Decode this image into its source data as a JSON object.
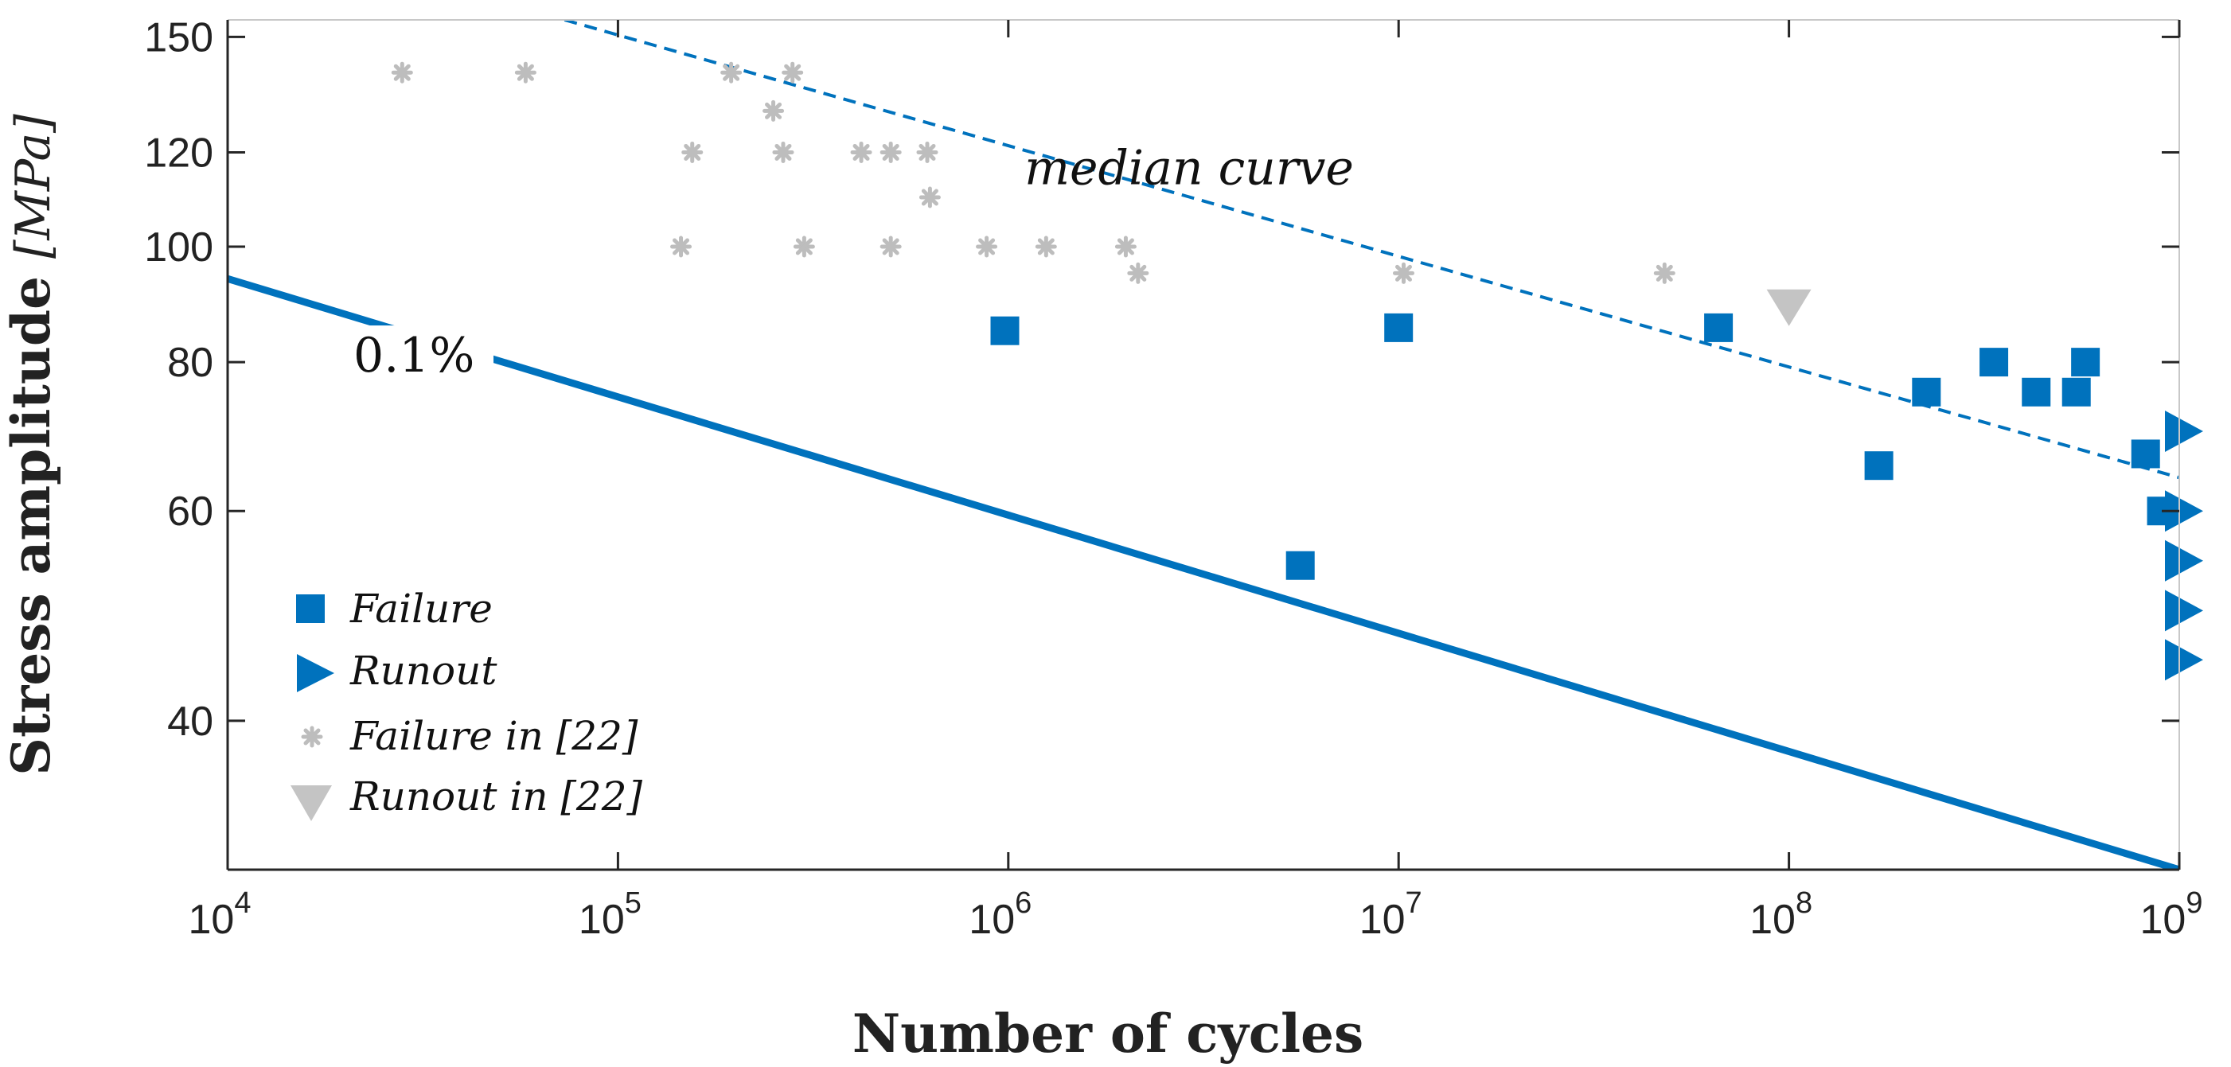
{
  "chart_data": {
    "type": "scatter",
    "title": "",
    "xlabel": "Number of cycles",
    "ylabel": "Stress amplitude",
    "ylabel_unit": "[MPa]",
    "xscale": "log",
    "yscale": "log",
    "xlim": [
      10000,
      1000000000
    ],
    "ylim": [
      30,
      155
    ],
    "grid": false,
    "x_ticks": [
      {
        "value": 10000,
        "base": "10",
        "exp": "4"
      },
      {
        "value": 100000,
        "base": "10",
        "exp": "5"
      },
      {
        "value": 1000000,
        "base": "10",
        "exp": "6"
      },
      {
        "value": 10000000,
        "base": "10",
        "exp": "7"
      },
      {
        "value": 100000000,
        "base": "10",
        "exp": "8"
      },
      {
        "value": 1000000000,
        "base": "10",
        "exp": "9"
      }
    ],
    "y_ticks": [
      {
        "value": 40,
        "label": "40"
      },
      {
        "value": 60,
        "label": "60"
      },
      {
        "value": 80,
        "label": "80"
      },
      {
        "value": 100,
        "label": "100"
      },
      {
        "value": 120,
        "label": "120"
      },
      {
        "value": 150,
        "label": "150"
      }
    ],
    "series": [
      {
        "name": "Failure",
        "marker": "square",
        "color": "#0072BD",
        "points": [
          [
            980000,
            85
          ],
          [
            10000000,
            85.5
          ],
          [
            5600000,
            54
          ],
          [
            66000000,
            85.5
          ],
          [
            170000000,
            65.5
          ],
          [
            225000000,
            75.5
          ],
          [
            335000000,
            80
          ],
          [
            430000000,
            75.5
          ],
          [
            545000000,
            75.5
          ],
          [
            575000000,
            80
          ],
          [
            820000000,
            67
          ],
          [
            900000000,
            60
          ]
        ]
      },
      {
        "name": "Runout",
        "marker": "triangle-right",
        "color": "#0072BD",
        "points": [
          [
            1000000000,
            70
          ],
          [
            1000000000,
            60
          ],
          [
            1000000000,
            54.5
          ],
          [
            1000000000,
            49.5
          ],
          [
            1000000000,
            45
          ]
        ]
      },
      {
        "name": "Failure in [22]",
        "marker": "asterisk",
        "color": "#BDBDBD",
        "points": [
          [
            28000,
            140
          ],
          [
            58000,
            140
          ],
          [
            195000,
            140
          ],
          [
            280000,
            140
          ],
          [
            250000,
            130
          ],
          [
            155000,
            120
          ],
          [
            265000,
            120
          ],
          [
            420000,
            120
          ],
          [
            500000,
            120
          ],
          [
            620000,
            120
          ],
          [
            630000,
            110
          ],
          [
            145000,
            100
          ],
          [
            300000,
            100
          ],
          [
            500000,
            100
          ],
          [
            880000,
            100
          ],
          [
            1250000,
            100
          ],
          [
            2000000,
            100
          ],
          [
            2150000,
            95
          ],
          [
            10300000,
            95
          ],
          [
            48000000,
            95
          ]
        ]
      },
      {
        "name": "Runout in [22]",
        "marker": "triangle-down",
        "color": "#C4C4C4",
        "points": [
          [
            100000000,
            89
          ]
        ]
      }
    ],
    "lines": [
      {
        "name": "median curve",
        "style": "dashed",
        "color": "#0072BD",
        "from": [
          73000,
          155
        ],
        "to": [
          1000000000,
          64
        ]
      },
      {
        "name": "0.1%",
        "style": "solid",
        "color": "#0072BD",
        "from": [
          10000,
          94
        ],
        "to": [
          1000000000,
          30
        ]
      }
    ],
    "annotations": [
      {
        "text": "median curve",
        "italic": true
      },
      {
        "text": "0.1%",
        "italic": false
      }
    ],
    "legend": {
      "position": "bottom-left",
      "entries": [
        "Failure",
        "Runout",
        "Failure in [22]",
        "Runout in [22]"
      ]
    }
  }
}
